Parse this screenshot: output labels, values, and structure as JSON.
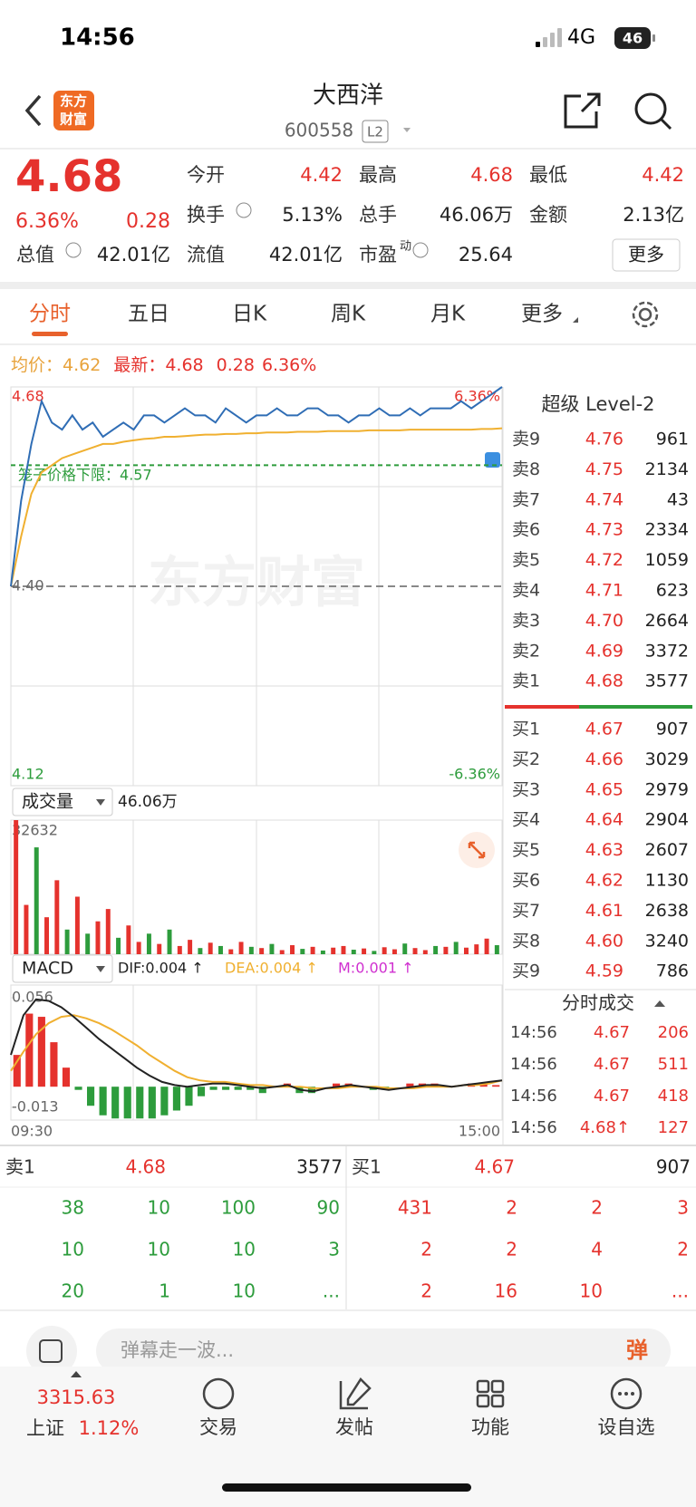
{
  "status_bar": {
    "time": "14:56",
    "network": "4G",
    "battery": "46"
  },
  "header": {
    "logo": [
      "东方",
      "财富"
    ],
    "name": "大西洋",
    "code": "600558",
    "level": "L2"
  },
  "quote": {
    "price": "4.68",
    "change_pct": "6.36%",
    "change": "0.28",
    "stats": [
      [
        "今开",
        "4.42"
      ],
      [
        "最高",
        "4.68"
      ],
      [
        "最低",
        "4.42"
      ],
      [
        "换手",
        "5.13%"
      ],
      [
        "总手",
        "46.06万"
      ],
      [
        "金额",
        "2.13亿"
      ],
      [
        "总值",
        "42.01亿"
      ],
      [
        "流值",
        "42.01亿"
      ],
      [
        "市盈",
        "25.64"
      ]
    ],
    "pe_mark": "动",
    "more": "更多"
  },
  "tabs": [
    "分时",
    "五日",
    "日K",
    "周K",
    "月K",
    "更多"
  ],
  "info": {
    "avg_label": "均价：",
    "avg": "4.62",
    "last_label": "最新：",
    "last": "4.68",
    "change": "0.28",
    "change_pct": "6.36%"
  },
  "chart_data": [
    {
      "type": "line",
      "watermark": "东方财富",
      "series": [
        {
          "color": "#2f6db5",
          "values": [
            4.4,
            4.52,
            4.6,
            4.66,
            4.63,
            4.62,
            4.64,
            4.62,
            4.63,
            4.61,
            4.62,
            4.63,
            4.62,
            4.64,
            4.64,
            4.63,
            4.64,
            4.65,
            4.64,
            4.64,
            4.63,
            4.65,
            4.64,
            4.63,
            4.64,
            4.64,
            4.65,
            4.64,
            4.64,
            4.65,
            4.65,
            4.64,
            4.64,
            4.63,
            4.64,
            4.64,
            4.65,
            4.64,
            4.64,
            4.65,
            4.64,
            4.65,
            4.65,
            4.65,
            4.66,
            4.65,
            4.66,
            4.67,
            4.68
          ]
        },
        {
          "color": "#f0b030",
          "values": [
            4.4,
            4.47,
            4.53,
            4.56,
            4.57,
            4.58,
            4.585,
            4.59,
            4.595,
            4.6,
            4.6,
            4.603,
            4.605,
            4.607,
            4.608,
            4.61,
            4.61,
            4.611,
            4.612,
            4.613,
            4.613,
            4.614,
            4.614,
            4.615,
            4.615,
            4.616,
            4.616,
            4.616,
            4.617,
            4.617,
            4.617,
            4.618,
            4.618,
            4.618,
            4.618,
            4.619,
            4.619,
            4.619,
            4.619,
            4.62,
            4.62,
            4.62,
            4.62,
            4.62,
            4.62,
            4.62,
            4.621,
            4.621,
            4.622
          ]
        }
      ],
      "ylim": [
        4.12,
        4.68
      ],
      "yticks": [
        4.68,
        {
          "value": 4.4,
          "label": "4.40"
        },
        4.12
      ],
      "y2lim": [
        -6.36,
        6.36
      ],
      "y2ticks": [
        {
          "value": 6.36,
          "label": "6.36%"
        },
        {
          "value": -6.36,
          "label": "-6.36%"
        }
      ],
      "limit_label": "笼子价格下限：",
      "limit": 4.57,
      "limit_color": "#2d9c3c"
    },
    {
      "type": "bar",
      "title": "成交量",
      "total": "46.06万",
      "ylim": [
        0,
        32632
      ],
      "yticks": [
        32632
      ],
      "values": [
        32632,
        12000,
        26000,
        9000,
        18000,
        6000,
        14000,
        5000,
        8000,
        11000,
        4000,
        7000,
        3000,
        5000,
        2500,
        6000,
        2000,
        3500,
        1500,
        2800,
        2000,
        1200,
        3000,
        1800,
        1500,
        2500,
        1000,
        2200,
        1300,
        1800,
        900,
        1600,
        2000,
        1100,
        1400,
        800,
        1700,
        1200,
        2600,
        1500,
        1000,
        2000,
        1800,
        3000,
        1600,
        2400,
        3800,
        2200
      ],
      "colors": [
        "#e5322d",
        "#e5322d",
        "#2d9c3c",
        "#e5322d",
        "#e5322d",
        "#2d9c3c",
        "#e5322d",
        "#2d9c3c",
        "#e5322d",
        "#e5322d",
        "#2d9c3c",
        "#e5322d",
        "#e5322d",
        "#2d9c3c",
        "#e5322d",
        "#2d9c3c",
        "#e5322d",
        "#e5322d",
        "#2d9c3c",
        "#e5322d",
        "#2d9c3c",
        "#e5322d",
        "#e5322d",
        "#2d9c3c",
        "#e5322d",
        "#2d9c3c",
        "#e5322d",
        "#e5322d",
        "#2d9c3c",
        "#e5322d",
        "#2d9c3c",
        "#e5322d",
        "#e5322d",
        "#2d9c3c",
        "#e5322d",
        "#2d9c3c",
        "#e5322d",
        "#e5322d",
        "#2d9c3c",
        "#e5322d",
        "#e5322d",
        "#2d9c3c",
        "#e5322d",
        "#2d9c3c",
        "#e5322d",
        "#e5322d",
        "#e5322d",
        "#2d9c3c"
      ]
    },
    {
      "type": "macd",
      "title": "MACD",
      "x_labels": [
        "09:30",
        "15:00"
      ],
      "ylim": [
        -0.021,
        0.064
      ],
      "yticks": [
        0.056,
        -0.013
      ],
      "series": [
        {
          "name": "DIF:0.004 ↑",
          "color": "#222222",
          "values": [
            0.02,
            0.045,
            0.055,
            0.054,
            0.05,
            0.044,
            0.037,
            0.03,
            0.024,
            0.018,
            0.012,
            0.007,
            0.003,
            0.001,
            0.0,
            0.001,
            0.002,
            0.002,
            0.001,
            0.0,
            -0.001,
            0.0,
            0.001,
            -0.002,
            -0.003,
            -0.001,
            0.0,
            0.001,
            0.0,
            -0.001,
            -0.002,
            -0.001,
            0.0,
            0.001,
            0.001,
            0.0,
            0.001,
            0.002,
            0.003,
            0.004
          ]
        },
        {
          "name": "DEA:0.004 ↑",
          "color": "#f0b030",
          "values": [
            0.01,
            0.022,
            0.033,
            0.04,
            0.044,
            0.045,
            0.043,
            0.04,
            0.036,
            0.031,
            0.026,
            0.02,
            0.015,
            0.01,
            0.006,
            0.004,
            0.003,
            0.003,
            0.002,
            0.001,
            0.001,
            0.0,
            0.0,
            0.0,
            -0.001,
            -0.001,
            -0.001,
            0.0,
            0.0,
            0.0,
            -0.001,
            -0.001,
            -0.001,
            0.0,
            0.0,
            0.0,
            0.001,
            0.001,
            0.002,
            0.004
          ]
        },
        {
          "name": "M:0.001 ↑",
          "color": "#d030d0",
          "values": [
            0.02,
            0.046,
            0.044,
            0.028,
            0.012,
            -0.002,
            -0.012,
            -0.018,
            -0.02,
            -0.02,
            -0.02,
            -0.02,
            -0.018,
            -0.015,
            -0.012,
            -0.006,
            -0.002,
            -0.002,
            -0.002,
            -0.002,
            -0.004,
            0.0,
            0.002,
            -0.004,
            -0.004,
            0.0,
            0.002,
            0.002,
            0.0,
            -0.002,
            -0.002,
            0.0,
            0.002,
            0.002,
            0.002,
            0.0,
            0.0,
            0.002,
            0.002,
            0.001
          ]
        }
      ]
    }
  ],
  "order_book": {
    "title": "超级 Level-2",
    "asks": [
      [
        "卖9",
        "4.76",
        "961"
      ],
      [
        "卖8",
        "4.75",
        "2134"
      ],
      [
        "卖7",
        "4.74",
        "43"
      ],
      [
        "卖6",
        "4.73",
        "2334"
      ],
      [
        "卖5",
        "4.72",
        "1059"
      ],
      [
        "卖4",
        "4.71",
        "623"
      ],
      [
        "卖3",
        "4.70",
        "2664"
      ],
      [
        "卖2",
        "4.69",
        "3372"
      ],
      [
        "卖1",
        "4.68",
        "3577"
      ]
    ],
    "bids": [
      [
        "买1",
        "4.67",
        "907"
      ],
      [
        "买2",
        "4.66",
        "3029"
      ],
      [
        "买3",
        "4.65",
        "2979"
      ],
      [
        "买4",
        "4.64",
        "2904"
      ],
      [
        "买5",
        "4.63",
        "2607"
      ],
      [
        "买6",
        "4.62",
        "1130"
      ],
      [
        "买7",
        "4.61",
        "2638"
      ],
      [
        "买8",
        "4.60",
        "3240"
      ],
      [
        "买9",
        "4.59",
        "786"
      ]
    ]
  },
  "ticks": {
    "title": "分时成交",
    "rows": [
      [
        "14:56",
        "4.67",
        "206"
      ],
      [
        "14:56",
        "4.67",
        "511"
      ],
      [
        "14:56",
        "4.67",
        "418"
      ],
      [
        "14:56",
        "4.68↑",
        "127"
      ]
    ]
  },
  "queue": {
    "ask": [
      "卖1",
      "4.68",
      "3577"
    ],
    "bid": [
      "买1",
      "4.67",
      "907"
    ],
    "ask_orders": [
      [
        "38",
        "10",
        "100",
        "90"
      ],
      [
        "10",
        "10",
        "10",
        "3"
      ],
      [
        "20",
        "1",
        "10",
        "..."
      ]
    ],
    "bid_orders": [
      [
        "431",
        "2",
        "2",
        "3"
      ],
      [
        "2",
        "2",
        "4",
        "2"
      ],
      [
        "2",
        "16",
        "10",
        "..."
      ]
    ]
  },
  "comment": {
    "placeholder": "弹幕走一波...",
    "button": "弹"
  },
  "nav": {
    "index_value": "3315.63",
    "index_name": "上证",
    "index_change": "1.12%",
    "items": [
      "交易",
      "发帖",
      "功能",
      "设自选"
    ]
  }
}
